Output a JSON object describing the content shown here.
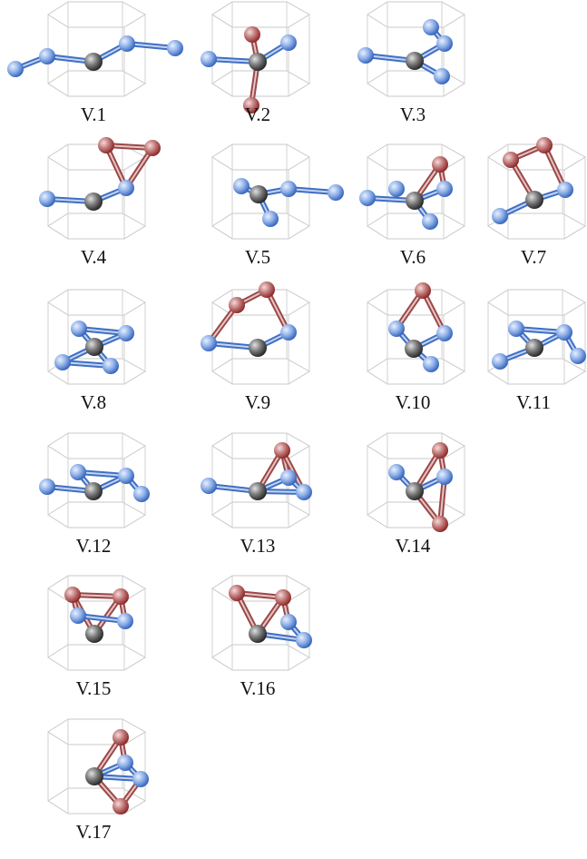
{
  "figure": {
    "panels": [
      {
        "label": "V.1"
      },
      {
        "label": "V.2"
      },
      {
        "label": "V.3"
      },
      {
        "label": "V.4"
      },
      {
        "label": "V.5"
      },
      {
        "label": "V.6"
      },
      {
        "label": "V.7"
      },
      {
        "label": "V.8"
      },
      {
        "label": "V.9"
      },
      {
        "label": "V.10"
      },
      {
        "label": "V.11"
      },
      {
        "label": "V.12"
      },
      {
        "label": "V.13"
      },
      {
        "label": "V.14"
      },
      {
        "label": "V.15"
      },
      {
        "label": "V.16"
      },
      {
        "label": "V.17"
      }
    ]
  }
}
